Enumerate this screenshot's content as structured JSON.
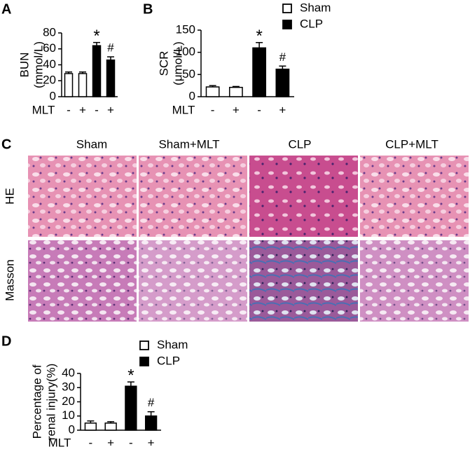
{
  "panel_labels": [
    "A",
    "B",
    "C",
    "D"
  ],
  "chart_data": [
    {
      "type": "bar",
      "ylabel": [
        "BUN",
        "(mmol/L)"
      ],
      "x_row_label": "MLT",
      "categories": [
        "-",
        "+",
        "-",
        "+"
      ],
      "series": [
        {
          "name": "Sham",
          "color": "#ffffff",
          "values": [
            29,
            29,
            null,
            null
          ],
          "errors": [
            2,
            2,
            null,
            null
          ]
        },
        {
          "name": "CLP",
          "color": "#000000",
          "values": [
            null,
            null,
            64,
            46
          ],
          "errors": [
            null,
            null,
            4,
            4
          ]
        }
      ],
      "annotations": [
        null,
        null,
        "*",
        "#"
      ],
      "ylim": [
        0,
        80
      ],
      "yticks": [
        0,
        20,
        40,
        60,
        80
      ],
      "legend": false
    },
    {
      "type": "bar",
      "ylabel": [
        "SCR",
        "(μmol/L)"
      ],
      "x_row_label": "MLT",
      "categories": [
        "-",
        "+",
        "-",
        "+"
      ],
      "series": [
        {
          "name": "Sham",
          "color": "#ffffff",
          "values": [
            22,
            21,
            null,
            null
          ],
          "errors": [
            3,
            2,
            null,
            null
          ]
        },
        {
          "name": "CLP",
          "color": "#000000",
          "values": [
            null,
            null,
            110,
            62
          ],
          "errors": [
            null,
            null,
            12,
            7
          ]
        }
      ],
      "annotations": [
        null,
        null,
        "*",
        "#"
      ],
      "ylim": [
        0,
        150
      ],
      "yticks": [
        0,
        50,
        100,
        150
      ],
      "legend": true
    },
    {
      "type": "bar",
      "ylabel": [
        "Percentage of",
        "renal injury(%)"
      ],
      "x_row_label": "MLT",
      "categories": [
        "-",
        "+",
        "-",
        "+"
      ],
      "series": [
        {
          "name": "Sham",
          "color": "#ffffff",
          "values": [
            5,
            5,
            null,
            null
          ],
          "errors": [
            1.5,
            1,
            null,
            null
          ]
        },
        {
          "name": "CLP",
          "color": "#000000",
          "values": [
            null,
            null,
            31,
            10
          ],
          "errors": [
            null,
            null,
            3,
            3
          ]
        }
      ],
      "annotations": [
        null,
        null,
        "*",
        "#"
      ],
      "ylim": [
        0,
        40
      ],
      "yticks": [
        0,
        10,
        20,
        30,
        40
      ],
      "legend": true
    }
  ],
  "histology": {
    "columns": [
      "Sham",
      "Sham+MLT",
      "CLP",
      "CLP+MLT"
    ],
    "rows": [
      "HE",
      "Masson"
    ]
  }
}
